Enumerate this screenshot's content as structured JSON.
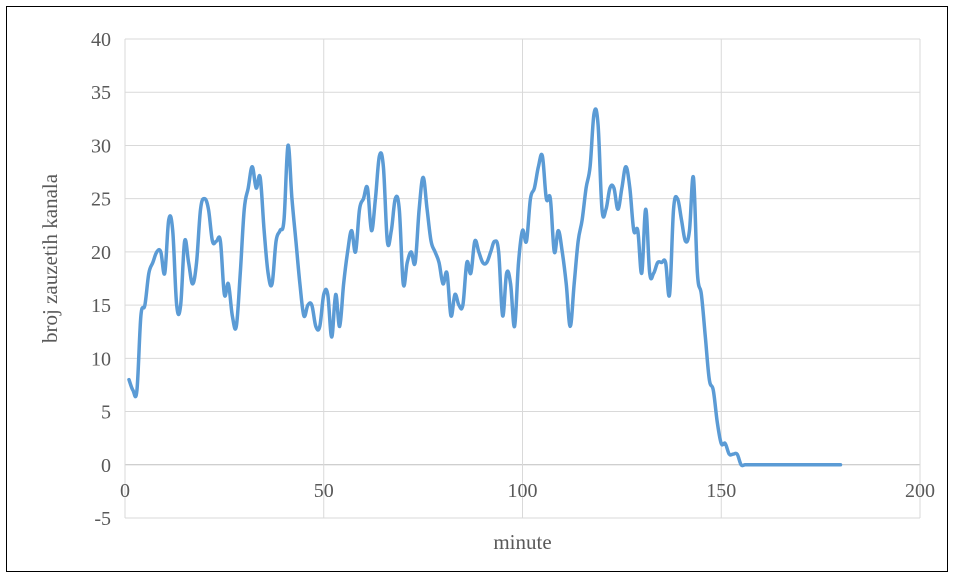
{
  "chart_data": {
    "type": "line",
    "title": "",
    "xlabel": "minute",
    "ylabel": "broj zauzetih kanala",
    "xlim": [
      0,
      200
    ],
    "ylim": [
      -5,
      40
    ],
    "xticks": [
      0,
      50,
      100,
      150,
      200
    ],
    "yticks": [
      -5,
      0,
      5,
      10,
      15,
      20,
      25,
      30,
      35,
      40
    ],
    "grid": true,
    "legend": "none",
    "series": [
      {
        "color": "#5B9BD5",
        "x": [
          1,
          2,
          3,
          4,
          5,
          6,
          7,
          8,
          9,
          10,
          11,
          12,
          13,
          14,
          15,
          16,
          17,
          18,
          19,
          20,
          21,
          22,
          23,
          24,
          25,
          26,
          27,
          28,
          29,
          30,
          31,
          32,
          33,
          34,
          35,
          36,
          37,
          38,
          39,
          40,
          41,
          42,
          43,
          44,
          45,
          46,
          47,
          48,
          49,
          50,
          51,
          52,
          53,
          54,
          55,
          56,
          57,
          58,
          59,
          60,
          61,
          62,
          63,
          64,
          65,
          66,
          67,
          68,
          69,
          70,
          71,
          72,
          73,
          74,
          75,
          76,
          77,
          78,
          79,
          80,
          81,
          82,
          83,
          84,
          85,
          86,
          87,
          88,
          89,
          90,
          91,
          92,
          93,
          94,
          95,
          96,
          97,
          98,
          99,
          100,
          101,
          102,
          103,
          104,
          105,
          106,
          107,
          108,
          109,
          110,
          111,
          112,
          113,
          114,
          115,
          116,
          117,
          118,
          119,
          120,
          121,
          122,
          123,
          124,
          125,
          126,
          127,
          128,
          129,
          130,
          131,
          132,
          133,
          134,
          135,
          136,
          137,
          138,
          139,
          140,
          141,
          142,
          143,
          144,
          145,
          146,
          147,
          148,
          149,
          150,
          151,
          152,
          153,
          154,
          155,
          156,
          157,
          158,
          159,
          160,
          161,
          162,
          163,
          164,
          165,
          166,
          167,
          168,
          169,
          170,
          171,
          172,
          173,
          174,
          175,
          176,
          177,
          178,
          179,
          180
        ],
        "y": [
          8,
          7,
          7,
          14,
          15,
          18,
          19,
          20,
          20,
          18,
          23,
          22,
          15,
          15,
          21,
          19,
          17,
          19,
          24,
          25,
          24,
          21,
          21,
          21,
          16,
          17,
          14,
          13,
          18,
          24,
          26,
          28,
          26,
          27,
          22,
          18,
          17,
          21,
          22,
          23,
          30,
          25,
          21,
          17,
          14,
          15,
          15,
          13,
          13,
          16,
          16,
          12,
          16,
          13,
          17,
          20,
          22,
          20,
          24,
          25,
          26,
          22,
          25,
          29,
          28,
          21,
          22,
          25,
          24,
          17,
          19,
          20,
          19,
          24,
          27,
          24,
          21,
          20,
          19,
          17,
          18,
          14,
          16,
          15,
          15,
          19,
          18,
          21,
          20,
          19,
          19,
          20,
          21,
          20,
          14,
          18,
          17,
          13,
          19,
          22,
          21,
          25,
          26,
          28,
          29,
          25,
          25,
          20,
          22,
          20,
          17,
          13,
          17,
          21,
          23,
          26,
          28,
          33,
          32,
          24,
          24,
          26,
          26,
          24,
          26,
          28,
          26,
          22,
          22,
          18,
          24,
          18,
          18,
          19,
          19,
          19,
          16,
          24,
          25,
          23,
          21,
          22,
          27,
          18,
          16,
          12,
          8,
          7,
          4,
          2,
          2,
          1,
          1,
          1,
          0,
          0,
          0,
          0,
          0,
          0,
          0,
          0,
          0,
          0,
          0,
          0,
          0,
          0,
          0,
          0,
          0,
          0,
          0,
          0,
          0,
          0,
          0,
          0,
          0,
          0
        ]
      }
    ]
  }
}
